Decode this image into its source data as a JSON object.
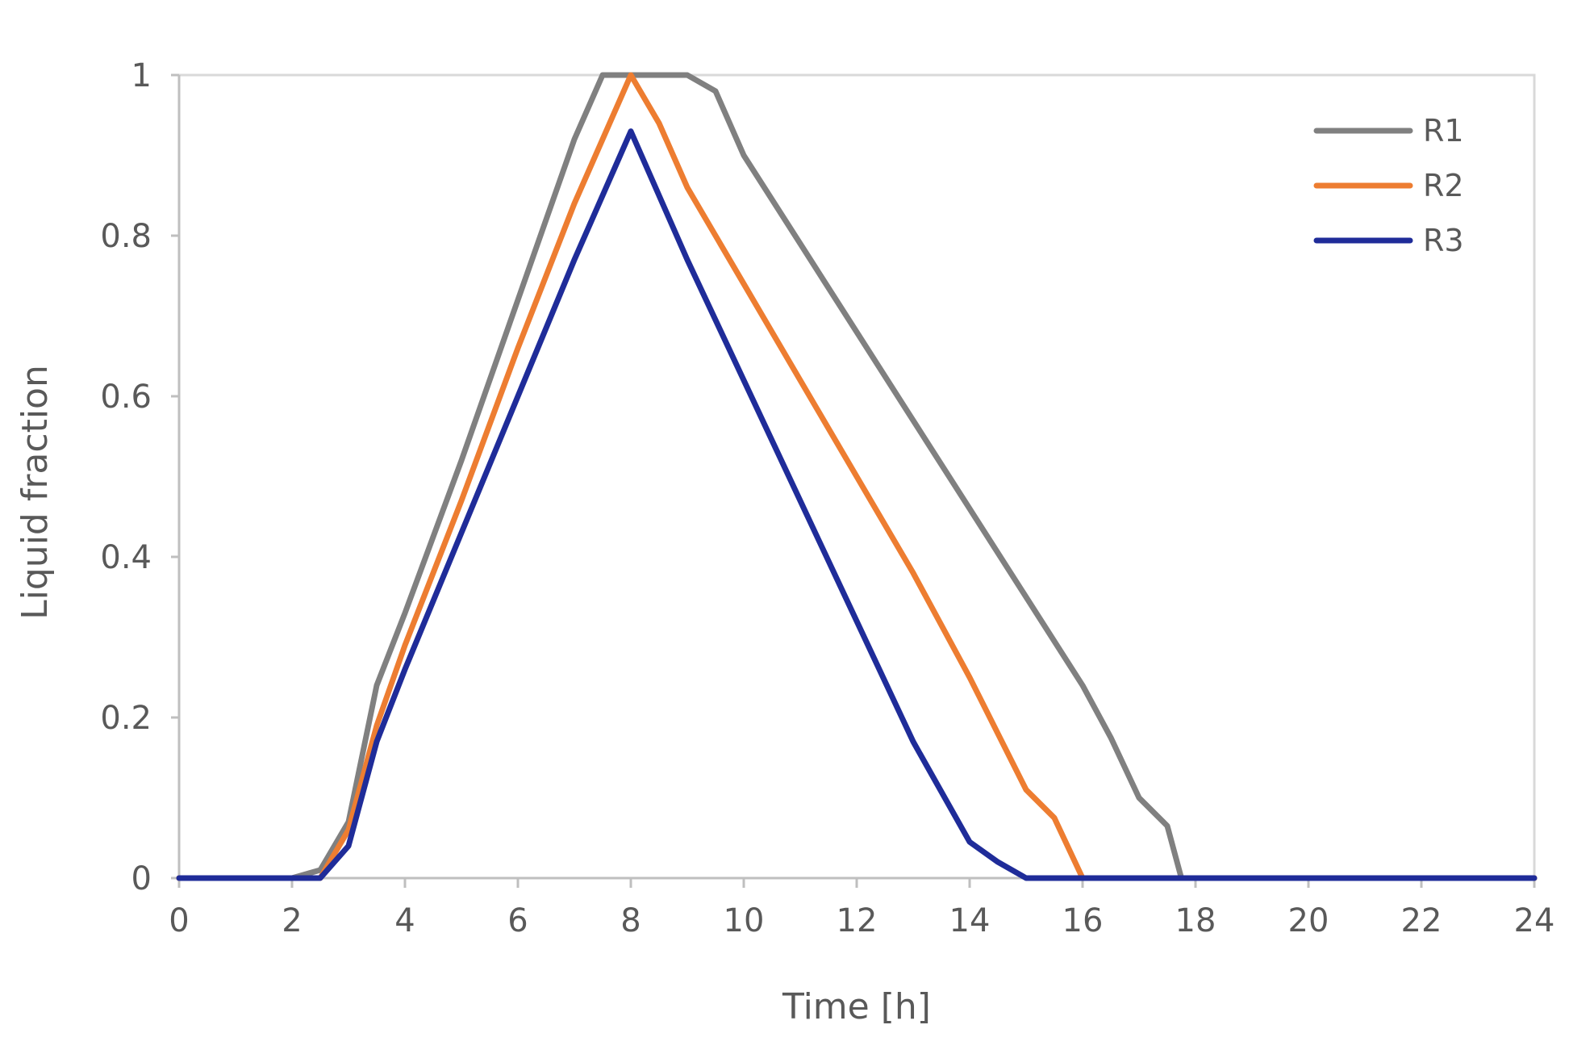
{
  "chart_data": {
    "type": "line",
    "title": "",
    "xlabel": "Time [h]",
    "ylabel": "Liquid fraction",
    "xlim": [
      0,
      24
    ],
    "ylim": [
      0,
      1
    ],
    "xticks": [
      "0",
      "2",
      "4",
      "6",
      "8",
      "10",
      "12",
      "14",
      "16",
      "18",
      "20",
      "22",
      "24"
    ],
    "yticks": [
      "0",
      "0.2",
      "0.4",
      "0.6",
      "0.8",
      "1"
    ],
    "grid": false,
    "legend_position": "top-right",
    "series": [
      {
        "name": "R1",
        "color": "#808080",
        "points": [
          [
            0,
            0
          ],
          [
            2,
            0
          ],
          [
            2.5,
            0.01
          ],
          [
            3,
            0.07
          ],
          [
            3.5,
            0.24
          ],
          [
            4,
            0.33
          ],
          [
            5,
            0.52
          ],
          [
            6,
            0.72
          ],
          [
            7,
            0.92
          ],
          [
            7.5,
            1.0
          ],
          [
            8,
            1.0
          ],
          [
            9,
            1.0
          ],
          [
            9.5,
            0.98
          ],
          [
            10,
            0.9
          ],
          [
            11,
            0.79
          ],
          [
            12,
            0.68
          ],
          [
            13,
            0.57
          ],
          [
            14,
            0.46
          ],
          [
            15,
            0.35
          ],
          [
            16,
            0.24
          ],
          [
            16.5,
            0.175
          ],
          [
            17,
            0.1
          ],
          [
            17.5,
            0.065
          ],
          [
            17.75,
            0
          ],
          [
            24,
            0
          ]
        ]
      },
      {
        "name": "R2",
        "color": "#ED7D31",
        "points": [
          [
            0,
            0
          ],
          [
            2.5,
            0
          ],
          [
            3,
            0.06
          ],
          [
            3.5,
            0.19
          ],
          [
            4,
            0.29
          ],
          [
            5,
            0.47
          ],
          [
            6,
            0.66
          ],
          [
            7,
            0.84
          ],
          [
            8,
            1.0
          ],
          [
            8.5,
            0.94
          ],
          [
            9,
            0.86
          ],
          [
            10,
            0.74
          ],
          [
            11,
            0.62
          ],
          [
            12,
            0.5
          ],
          [
            13,
            0.38
          ],
          [
            14,
            0.25
          ],
          [
            14.5,
            0.18
          ],
          [
            15,
            0.11
          ],
          [
            15.5,
            0.075
          ],
          [
            16,
            0
          ],
          [
            24,
            0
          ]
        ]
      },
      {
        "name": "R3",
        "color": "#1F2C99",
        "points": [
          [
            0,
            0
          ],
          [
            2.5,
            0
          ],
          [
            3,
            0.04
          ],
          [
            3.5,
            0.17
          ],
          [
            4,
            0.26
          ],
          [
            5,
            0.43
          ],
          [
            6,
            0.6
          ],
          [
            7,
            0.77
          ],
          [
            8,
            0.93
          ],
          [
            9,
            0.77
          ],
          [
            10,
            0.62
          ],
          [
            11,
            0.47
          ],
          [
            12,
            0.32
          ],
          [
            13,
            0.17
          ],
          [
            14,
            0.045
          ],
          [
            14.5,
            0.02
          ],
          [
            15,
            0
          ],
          [
            24,
            0
          ]
        ]
      }
    ]
  }
}
